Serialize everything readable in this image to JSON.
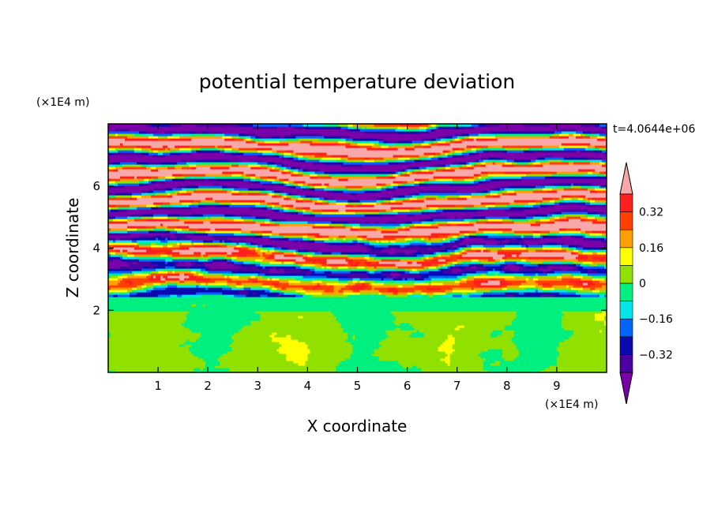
{
  "chart_data": {
    "type": "heatmap",
    "title": "potential temperature deviation",
    "xlabel": "X coordinate",
    "ylabel": "Z coordinate",
    "x_unit": "(×1E4 m)",
    "y_unit": "(×1E4 m)",
    "time_label": "t=4.0644e+06",
    "xlim": [
      0,
      10
    ],
    "ylim": [
      0,
      8
    ],
    "x_ticks": [
      "1",
      "2",
      "3",
      "4",
      "5",
      "6",
      "7",
      "8",
      "9"
    ],
    "y_ticks": [
      "2",
      "4",
      "6"
    ],
    "colorbar": {
      "levels": [
        -0.4,
        -0.32,
        -0.24,
        -0.16,
        -0.08,
        0,
        0.08,
        0.16,
        0.24,
        0.32,
        0.4
      ],
      "tick_labels": [
        "0.32",
        "0.16",
        "0",
        "−0.16",
        "−0.32"
      ],
      "tick_values": [
        0.32,
        0.16,
        0,
        -0.16,
        -0.32
      ],
      "colors": [
        "#7a00a8",
        "#4b00a0",
        "#0a0ab0",
        "#0064ff",
        "#00e6e6",
        "#00f080",
        "#90e000",
        "#ffff00",
        "#ffa000",
        "#ff4000",
        "#ff1f1f",
        "#f8a8a8"
      ],
      "extend": "both"
    }
  }
}
